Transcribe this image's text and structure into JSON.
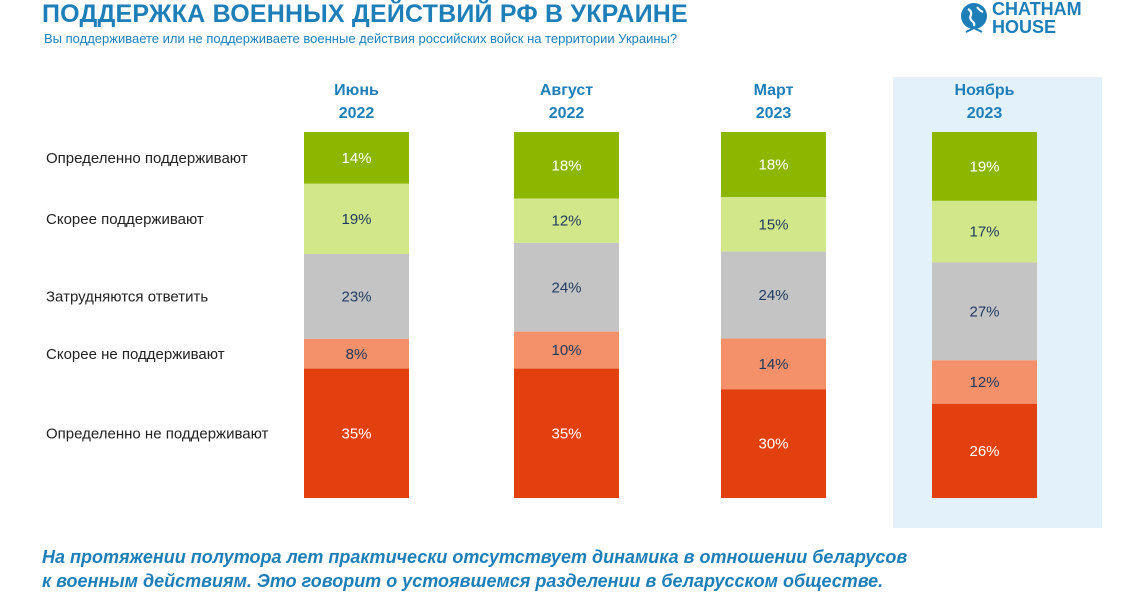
{
  "header": {
    "title": "ПОДДЕРЖКА ВОЕННЫХ ДЕЙСТВИЙ РФ В УКРАИНЕ",
    "subtitle": "Вы поддерживаете или не поддерживаете военные действия российских войск на территории Украины?"
  },
  "logo": {
    "line1": "CHATHAM",
    "line2": "HOUSE",
    "icon": "globe-icon",
    "color": "#1e7fb8"
  },
  "footer": {
    "line1": "На протяжении полутора лет практически отсутствует динамика в отношении беларусов",
    "line2": "к военным действиям. Это говорит о устоявшемся разделении в беларусском обществе."
  },
  "chart_data": {
    "type": "bar",
    "stacked": true,
    "orientation": "vertical",
    "categories": [
      [
        "Июнь",
        "2022"
      ],
      [
        "Август",
        "2022"
      ],
      [
        "Март",
        "2023"
      ],
      [
        "Ноябрь",
        "2023"
      ]
    ],
    "highlighted_category": 3,
    "highlight_color": "#e3f1fa",
    "series": [
      {
        "name": "Определенно поддерживают",
        "color": "#8db600",
        "values": [
          14,
          18,
          18,
          19
        ]
      },
      {
        "name": "Скорее поддерживают",
        "color": "#d2e68a",
        "values": [
          19,
          12,
          15,
          17
        ]
      },
      {
        "name": "Затрудняются ответить",
        "color": "#c4c4c4",
        "values": [
          23,
          24,
          24,
          27
        ]
      },
      {
        "name": "Скорее не поддерживают",
        "color": "#f4906a",
        "values": [
          8,
          10,
          14,
          12
        ]
      },
      {
        "name": "Определенно не поддерживают",
        "color": "#e2410f",
        "values": [
          35,
          35,
          30,
          26
        ]
      }
    ],
    "value_format": "{v}%",
    "label_color": "#1f3a5f",
    "category_label_color": "#1e7fb8",
    "legend_placement": "left",
    "grid": false
  }
}
